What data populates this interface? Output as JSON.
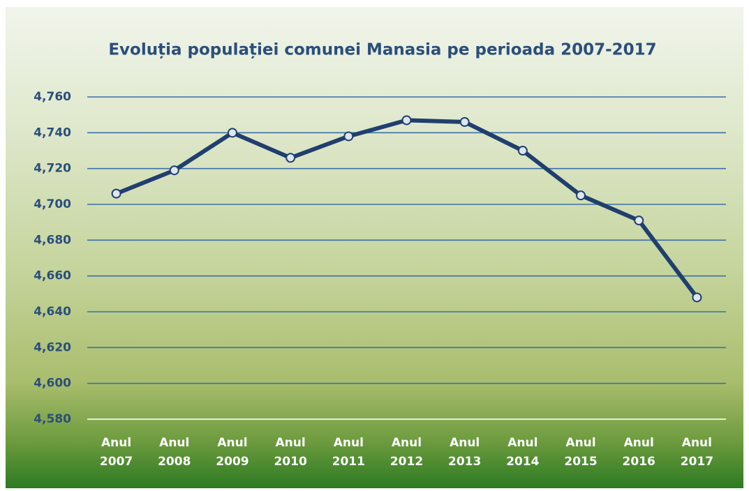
{
  "chart_data": {
    "type": "line",
    "title": "Evoluția populației comunei Manasia pe perioada 2007-2017",
    "categories": [
      "Anul 2007",
      "Anul 2008",
      "Anul 2009",
      "Anul 2010",
      "Anul 2011",
      "Anul 2012",
      "Anul 2013",
      "Anul 2014",
      "Anul 2015",
      "Anul 2016",
      "Anul 2017"
    ],
    "values": [
      4706,
      4719,
      4740,
      4726,
      4738,
      4747,
      4746,
      4730,
      4705,
      4691,
      4648
    ],
    "color": "#203f6e",
    "ylim": [
      4580,
      4760
    ],
    "yticks": [
      {
        "value": 4580,
        "label": "4,580"
      },
      {
        "value": 4600,
        "label": "4,600"
      },
      {
        "value": 4620,
        "label": "4,620"
      },
      {
        "value": 4640,
        "label": "4,640"
      },
      {
        "value": 4660,
        "label": "4,660"
      },
      {
        "value": 4680,
        "label": "4,680"
      },
      {
        "value": 4700,
        "label": "4,700"
      },
      {
        "value": 4720,
        "label": "4,720"
      },
      {
        "value": 4740,
        "label": "4,740"
      },
      {
        "value": 4760,
        "label": "4,760"
      }
    ],
    "grid": true
  }
}
